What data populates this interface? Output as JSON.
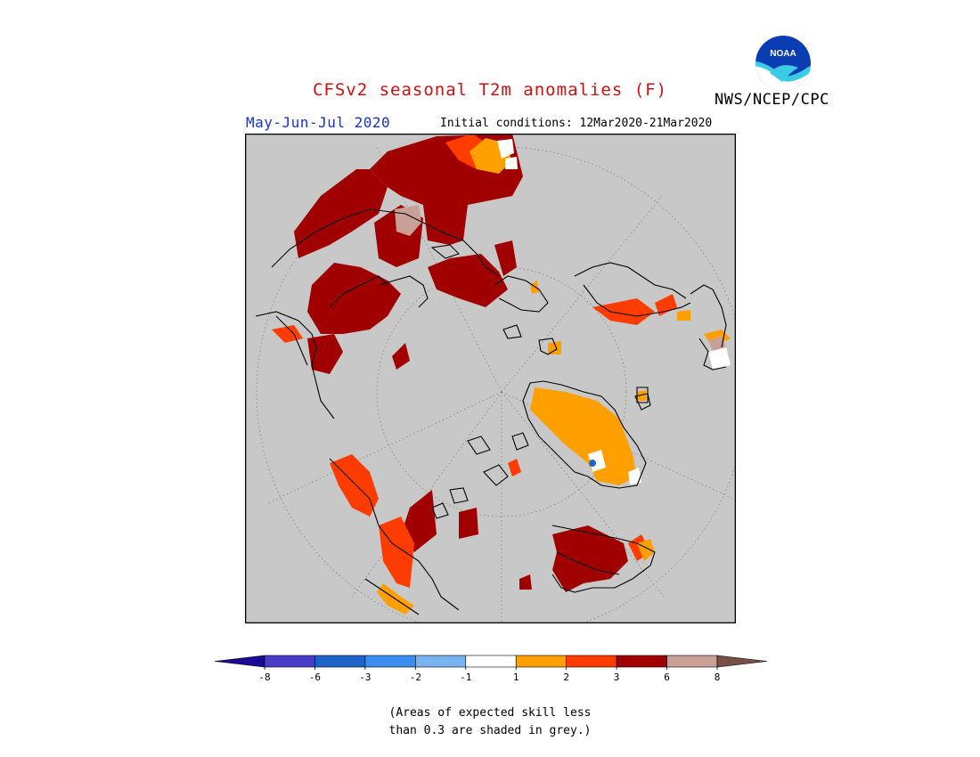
{
  "header": {
    "title": "CFSv2 seasonal T2m anomalies (F)",
    "agency": "NWS/NCEP/CPC",
    "logo_text": "NOAA",
    "season": "May-Jun-Jul 2020",
    "initial_conditions": "Initial conditions: 12Mar2020-21Mar2020"
  },
  "map": {
    "projection": "north polar stereographic",
    "background_color": "#c8c8c8"
  },
  "legend": {
    "bins": [
      {
        "color": "#1a0a96"
      },
      {
        "color": "#4a3cc8"
      },
      {
        "color": "#1e64c8"
      },
      {
        "color": "#3c8cf0"
      },
      {
        "color": "#78b4f0"
      },
      {
        "color": "#ffffff"
      },
      {
        "color": "#ffa000"
      },
      {
        "color": "#ff3c00"
      },
      {
        "color": "#a00000"
      },
      {
        "color": "#c8a096"
      },
      {
        "color": "#785046"
      }
    ],
    "ticks": [
      "-8",
      "-6",
      "-3",
      "-2",
      "-1",
      "1",
      "2",
      "3",
      "6",
      "8"
    ]
  },
  "footnote": {
    "line1": "(Areas of expected skill less",
    "line2": "than 0.3 are shaded in grey.)"
  }
}
